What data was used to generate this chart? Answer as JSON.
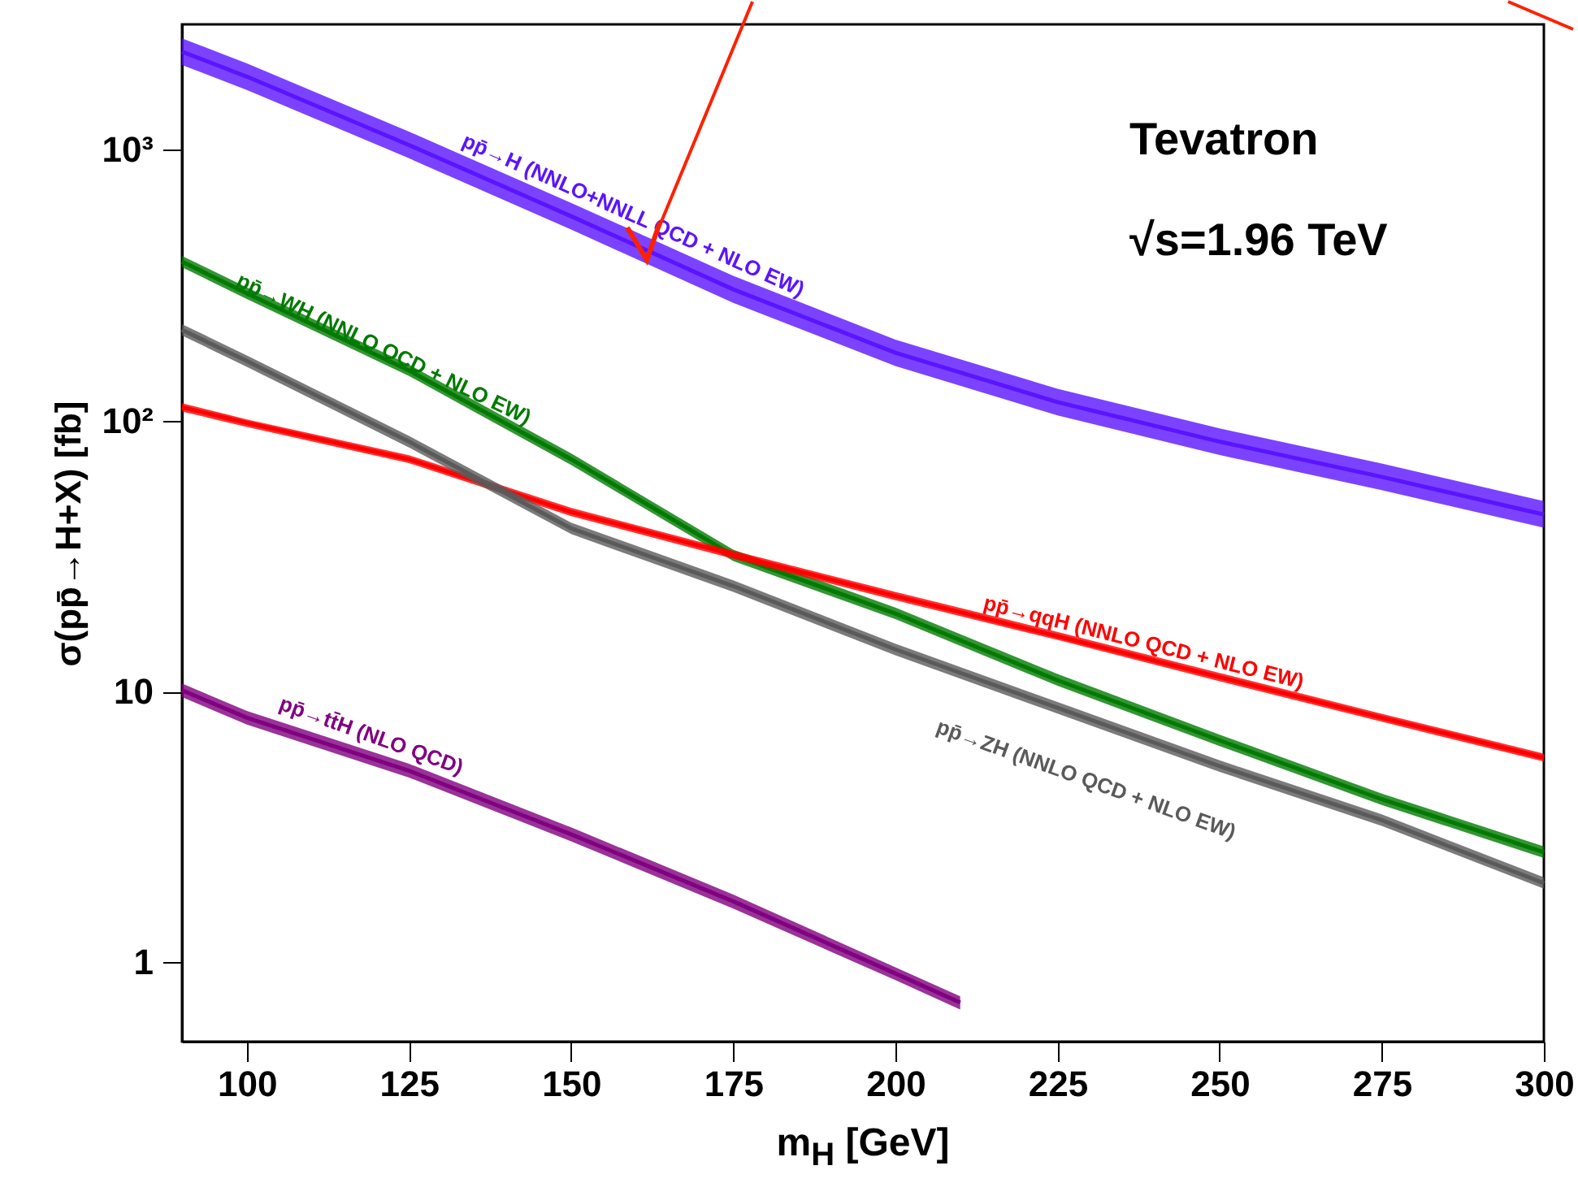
{
  "chart_data": {
    "type": "line",
    "xlabel": "m$_{H}$ [GeV]",
    "ylabel": "σ(pp̄→H+X) [fb]",
    "log": "y",
    "xlim": [
      90,
      300
    ],
    "xticks": [
      100,
      125,
      150,
      175,
      200,
      225,
      250,
      275,
      300
    ],
    "ylim": [
      0.51,
      2900
    ],
    "yticks": [
      1,
      10,
      {
        "value": 100,
        "label": "10²"
      },
      {
        "value": 1000,
        "label": "10³"
      }
    ],
    "x": [
      90,
      100,
      125,
      150,
      175,
      200,
      225,
      250,
      275,
      300
    ],
    "annotations": [
      "Tevatron",
      "√s=1.96 TeV"
    ],
    "series": [
      {
        "name": "pp̄→H (NNLO+NNLL QCD + NLO EW)",
        "color": "#5a14ff",
        "values": [
          2300,
          1860,
          1040,
          568,
          305,
          178,
          117,
          83.6,
          62,
          45
        ],
        "lower": [
          2054,
          1661,
          929,
          507,
          272,
          159,
          104.5,
          74.6,
          55.4,
          40.2
        ],
        "upper": [
          2576,
          2083,
          1165,
          636,
          342,
          199,
          131,
          93.6,
          69.4,
          50.4
        ]
      },
      {
        "name": "pp̄→WH (NNLO QCD + NLO EW)",
        "color": "#007a00",
        "values": [
          386,
          295,
          153,
          72,
          31.8,
          19.4,
          11,
          6.6,
          4.0,
          2.55
        ],
        "lower": [
          368,
          281,
          146,
          68.6,
          30.3,
          18.5,
          10.5,
          6.29,
          3.81,
          2.43
        ],
        "upper": [
          405,
          310,
          161,
          75.6,
          33.4,
          20.4,
          11.6,
          6.93,
          4.2,
          2.68
        ]
      },
      {
        "name": "pp̄→qqH (NNLO QCD + NLO EW)",
        "color": "#ff0000",
        "values": [
          112,
          98,
          72,
          46,
          32,
          22.5,
          16,
          11.3,
          8.0,
          5.7
        ],
        "lower": [
          108,
          94.7,
          69.6,
          44.4,
          30.9,
          21.7,
          15.5,
          10.9,
          7.73,
          5.51
        ],
        "upper": [
          116,
          101,
          74.5,
          47.6,
          33.1,
          23.3,
          16.6,
          11.7,
          8.28,
          5.9
        ]
      },
      {
        "name": "pp̄→ZH (NNLO QCD + NLO EW)",
        "color": "#5a5a5a",
        "values": [
          216,
          166,
          83.6,
          40,
          24.5,
          14.3,
          8.7,
          5.3,
          3.35,
          1.96
        ],
        "lower": [
          206,
          158,
          79.6,
          38.1,
          23.3,
          13.6,
          8.29,
          5.05,
          3.19,
          1.87
        ],
        "upper": [
          227,
          174,
          87.8,
          42,
          25.7,
          15.0,
          9.14,
          5.57,
          3.52,
          2.06
        ]
      },
      {
        "name": "pp̄→tt̄H (NLO QCD)",
        "color": "#800080",
        "x": [
          90,
          100,
          125,
          150,
          175,
          200,
          210
        ],
        "values": [
          10.1,
          8.0,
          5.1,
          2.97,
          1.68,
          0.91,
          0.71
        ],
        "lower": [
          9.53,
          7.55,
          4.81,
          2.8,
          1.58,
          0.86,
          0.67
        ],
        "upper": [
          10.7,
          8.48,
          5.41,
          3.15,
          1.78,
          0.96,
          0.75
        ]
      }
    ]
  }
}
